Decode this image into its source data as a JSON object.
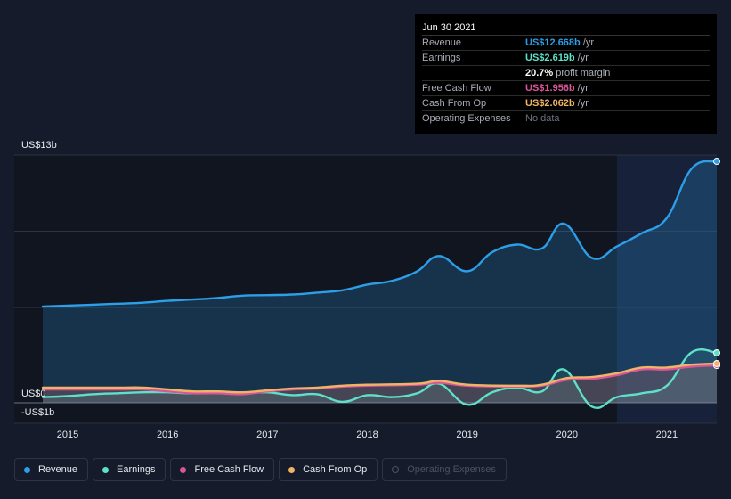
{
  "tooltip": {
    "date": "Jun 30 2021",
    "rows": [
      {
        "label": "Revenue",
        "value": "US$12.668b",
        "unit": "/yr",
        "color": "#2d9ee8"
      },
      {
        "label": "Earnings",
        "value": "US$2.619b",
        "unit": "/yr",
        "color": "#5ee1c8"
      },
      {
        "label": "",
        "value": "20.7%",
        "unit": "profit margin",
        "color": "#ffffff"
      },
      {
        "label": "Free Cash Flow",
        "value": "US$1.956b",
        "unit": "/yr",
        "color": "#d9559a"
      },
      {
        "label": "Cash From Op",
        "value": "US$2.062b",
        "unit": "/yr",
        "color": "#f0b466"
      },
      {
        "label": "Operating Expenses",
        "value": "No data",
        "unit": "",
        "color": "#6b7080"
      }
    ]
  },
  "legend": [
    {
      "label": "Revenue",
      "color": "#2d9ee8",
      "active": true
    },
    {
      "label": "Earnings",
      "color": "#5ee1c8",
      "active": true
    },
    {
      "label": "Free Cash Flow",
      "color": "#d9559a",
      "active": true
    },
    {
      "label": "Cash From Op",
      "color": "#f0b466",
      "active": true
    },
    {
      "label": "Operating Expenses",
      "color": "#4b5263",
      "active": false
    }
  ],
  "chart_data": {
    "type": "area",
    "y_tick_labels": [
      "US$13b",
      "US$0",
      "-US$1b"
    ],
    "x_tick_labels": [
      "2015",
      "2016",
      "2017",
      "2018",
      "2019",
      "2020",
      "2021"
    ],
    "ylim": [
      -1,
      13
    ],
    "xlim": [
      2014.75,
      2021.5
    ],
    "highlight_from": 2020.5,
    "grid": true,
    "series": [
      {
        "name": "Revenue",
        "color": "#2d9ee8",
        "points": [
          [
            2014.75,
            5.05
          ],
          [
            2015.0,
            5.1
          ],
          [
            2015.25,
            5.15
          ],
          [
            2015.5,
            5.2
          ],
          [
            2015.75,
            5.25
          ],
          [
            2016.0,
            5.35
          ],
          [
            2016.25,
            5.42
          ],
          [
            2016.5,
            5.5
          ],
          [
            2016.75,
            5.62
          ],
          [
            2017.0,
            5.65
          ],
          [
            2017.25,
            5.68
          ],
          [
            2017.5,
            5.78
          ],
          [
            2017.75,
            5.9
          ],
          [
            2018.0,
            6.2
          ],
          [
            2018.25,
            6.4
          ],
          [
            2018.5,
            6.9
          ],
          [
            2018.72,
            7.7
          ],
          [
            2019.0,
            6.9
          ],
          [
            2019.25,
            7.9
          ],
          [
            2019.5,
            8.3
          ],
          [
            2019.75,
            8.1
          ],
          [
            2019.97,
            9.4
          ],
          [
            2020.25,
            7.6
          ],
          [
            2020.5,
            8.2
          ],
          [
            2020.75,
            8.9
          ],
          [
            2021.0,
            9.7
          ],
          [
            2021.25,
            12.3
          ],
          [
            2021.5,
            12.67
          ]
        ]
      },
      {
        "name": "Earnings",
        "color": "#5ee1c8",
        "points": [
          [
            2014.75,
            0.3
          ],
          [
            2015.0,
            0.35
          ],
          [
            2015.25,
            0.45
          ],
          [
            2015.5,
            0.5
          ],
          [
            2015.75,
            0.55
          ],
          [
            2016.0,
            0.55
          ],
          [
            2016.25,
            0.5
          ],
          [
            2016.5,
            0.55
          ],
          [
            2016.75,
            0.5
          ],
          [
            2017.0,
            0.55
          ],
          [
            2017.25,
            0.4
          ],
          [
            2017.5,
            0.45
          ],
          [
            2017.75,
            0.05
          ],
          [
            2018.0,
            0.4
          ],
          [
            2018.25,
            0.3
          ],
          [
            2018.5,
            0.5
          ],
          [
            2018.72,
            1.0
          ],
          [
            2019.0,
            -0.1
          ],
          [
            2019.25,
            0.55
          ],
          [
            2019.5,
            0.8
          ],
          [
            2019.75,
            0.6
          ],
          [
            2019.97,
            1.75
          ],
          [
            2020.25,
            -0.2
          ],
          [
            2020.5,
            0.3
          ],
          [
            2020.75,
            0.5
          ],
          [
            2021.0,
            0.9
          ],
          [
            2021.25,
            2.65
          ],
          [
            2021.5,
            2.62
          ]
        ]
      },
      {
        "name": "Free Cash Flow",
        "color": "#d9559a",
        "points": [
          [
            2014.75,
            0.7
          ],
          [
            2015.0,
            0.7
          ],
          [
            2015.5,
            0.7
          ],
          [
            2015.75,
            0.7
          ],
          [
            2016.0,
            0.6
          ],
          [
            2016.25,
            0.5
          ],
          [
            2016.5,
            0.5
          ],
          [
            2016.75,
            0.45
          ],
          [
            2017.0,
            0.6
          ],
          [
            2017.25,
            0.7
          ],
          [
            2017.5,
            0.75
          ],
          [
            2017.75,
            0.85
          ],
          [
            2018.0,
            0.9
          ],
          [
            2018.5,
            0.95
          ],
          [
            2018.72,
            1.05
          ],
          [
            2019.0,
            0.9
          ],
          [
            2019.5,
            0.85
          ],
          [
            2019.75,
            0.9
          ],
          [
            2020.0,
            1.2
          ],
          [
            2020.25,
            1.25
          ],
          [
            2020.5,
            1.45
          ],
          [
            2020.75,
            1.75
          ],
          [
            2021.0,
            1.75
          ],
          [
            2021.25,
            1.9
          ],
          [
            2021.5,
            1.96
          ]
        ]
      },
      {
        "name": "Cash From Op",
        "color": "#f0b466",
        "points": [
          [
            2014.75,
            0.8
          ],
          [
            2015.0,
            0.8
          ],
          [
            2015.5,
            0.8
          ],
          [
            2015.75,
            0.8
          ],
          [
            2016.0,
            0.7
          ],
          [
            2016.25,
            0.6
          ],
          [
            2016.5,
            0.6
          ],
          [
            2016.75,
            0.55
          ],
          [
            2017.0,
            0.65
          ],
          [
            2017.25,
            0.75
          ],
          [
            2017.5,
            0.8
          ],
          [
            2017.75,
            0.9
          ],
          [
            2018.0,
            0.95
          ],
          [
            2018.5,
            1.0
          ],
          [
            2018.72,
            1.15
          ],
          [
            2019.0,
            0.95
          ],
          [
            2019.5,
            0.9
          ],
          [
            2019.75,
            0.95
          ],
          [
            2020.0,
            1.3
          ],
          [
            2020.25,
            1.35
          ],
          [
            2020.5,
            1.55
          ],
          [
            2020.75,
            1.85
          ],
          [
            2021.0,
            1.85
          ],
          [
            2021.25,
            2.0
          ],
          [
            2021.5,
            2.06
          ]
        ]
      }
    ]
  }
}
